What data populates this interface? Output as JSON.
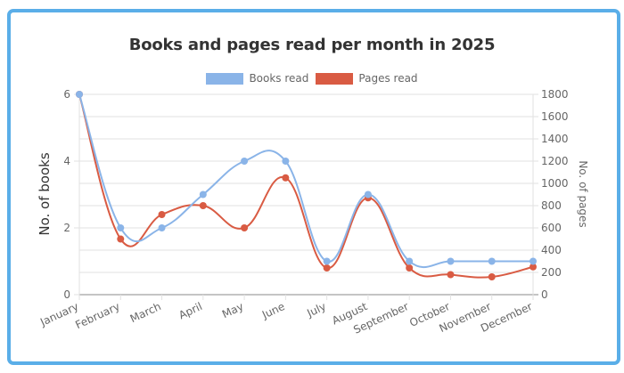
{
  "frame": {
    "border_color": "#5aaee8"
  },
  "chart_data": {
    "type": "line",
    "title": "Books and pages read per month in 2025",
    "categories": [
      "January",
      "February",
      "March",
      "April",
      "May",
      "June",
      "July",
      "August",
      "September",
      "October",
      "November",
      "December"
    ],
    "series": [
      {
        "name": "Books read",
        "axis": "left",
        "color": "#8ab4e8",
        "values": [
          6,
          2,
          2,
          3,
          4,
          4,
          1,
          3,
          1,
          1,
          1,
          1
        ]
      },
      {
        "name": "Pages read",
        "axis": "right",
        "color": "#d95b43",
        "values": [
          1800,
          500,
          720,
          800,
          600,
          1050,
          240,
          870,
          240,
          180,
          160,
          250
        ]
      }
    ],
    "xlabel": "",
    "ylabel": "No. of books",
    "y2label": "No. of pages",
    "ylim": [
      0,
      6
    ],
    "y2lim": [
      0,
      1800
    ],
    "yticks": [
      0,
      2,
      4,
      6
    ],
    "y2ticks": [
      0,
      200,
      400,
      600,
      800,
      1000,
      1200,
      1400,
      1600,
      1800
    ],
    "grid": true,
    "legend_position": "top",
    "curve": "smooth"
  }
}
